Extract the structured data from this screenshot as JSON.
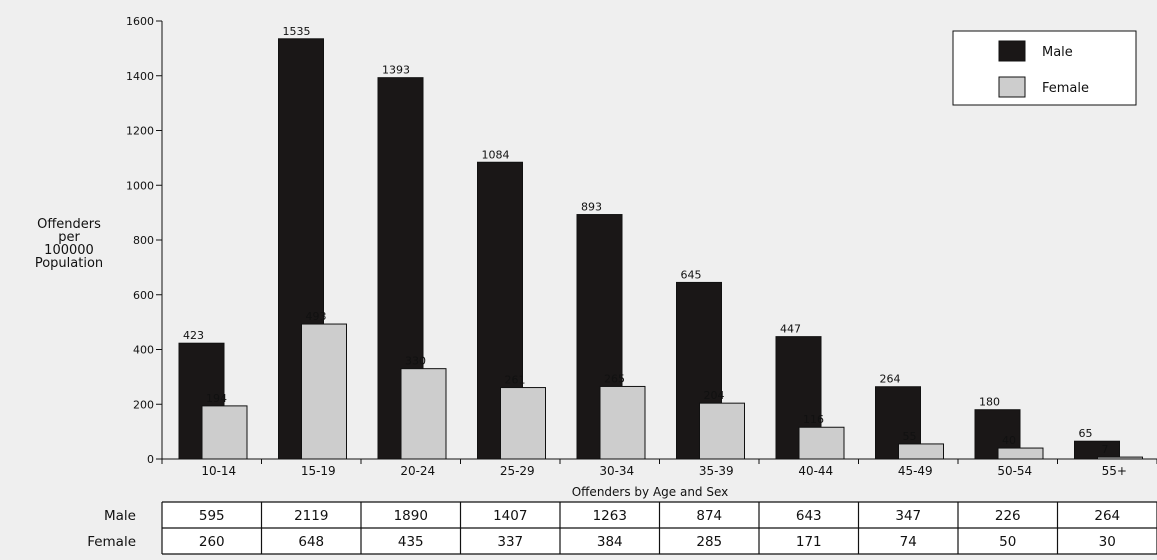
{
  "chart_data": {
    "type": "bar",
    "title": "",
    "ylabel": [
      "Offenders",
      "per",
      "100000",
      "Population"
    ],
    "xlabel": "Offenders by Age and Sex",
    "ylim": [
      0,
      1600
    ],
    "yticks": [
      0,
      200,
      400,
      600,
      800,
      1000,
      1200,
      1400,
      1600
    ],
    "grid": false,
    "legend_position": "top-right",
    "categories": [
      "10-14",
      "15-19",
      "20-24",
      "25-29",
      "30-34",
      "35-39",
      "40-44",
      "45-49",
      "50-54",
      "55+"
    ],
    "series": [
      {
        "name": "Male",
        "color": "#1a1717",
        "values": [
          423,
          1535,
          1393,
          1084,
          893,
          645,
          447,
          264,
          180,
          65
        ]
      },
      {
        "name": "Female",
        "color": "#cdcdcd",
        "values": [
          194,
          493,
          330,
          261,
          265,
          204,
          116,
          55,
          40,
          7
        ]
      }
    ],
    "table": {
      "rows": [
        {
          "label": "Male",
          "values": [
            "595",
            "2119",
            "1890",
            "1407",
            "1263",
            "874",
            "643",
            "347",
            "226",
            "264"
          ]
        },
        {
          "label": "Female",
          "values": [
            "260",
            "648",
            "435",
            "337",
            "384",
            "285",
            "171",
            "74",
            "50",
            "30"
          ]
        }
      ]
    }
  }
}
